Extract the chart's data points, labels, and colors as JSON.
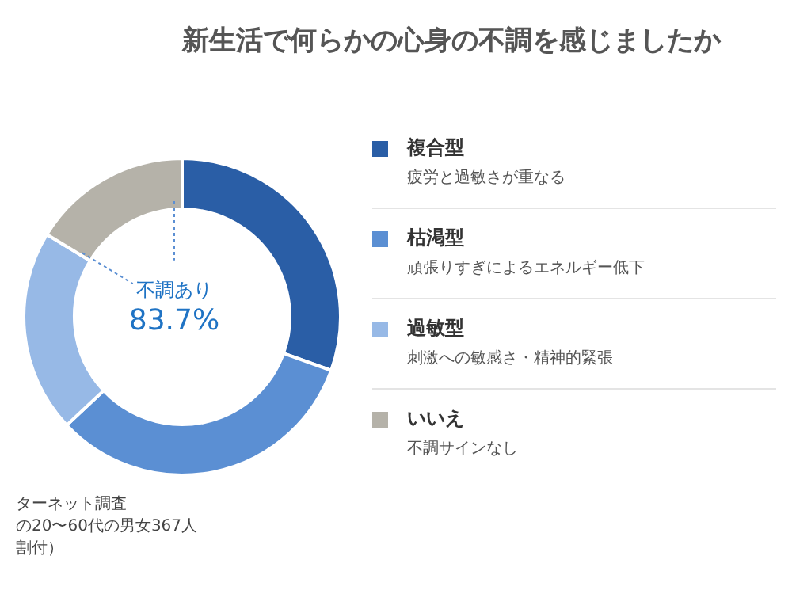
{
  "chart_data": {
    "type": "donut",
    "title": "新生活で何らかの心身の不調を感じましたか",
    "categories": [
      "複合型",
      "枯渇型",
      "過敏型",
      "いいえ"
    ],
    "values": [
      30.5,
      32.5,
      20.7,
      16.3
    ],
    "colors": [
      "#2a5ea6",
      "#5b8fd3",
      "#97b9e6",
      "#b5b2a9"
    ],
    "legend": "right",
    "annotations": [
      "不調あり",
      "83.7%",
      "疲労と過敏さが重なる",
      "頑張りすぎによるエネルギー低下",
      "刺激への敏感さ・精神的緊張",
      "不調サインなし",
      "ターネット調査",
      "の20〜60代の男女367人",
      "割付）"
    ]
  }
}
